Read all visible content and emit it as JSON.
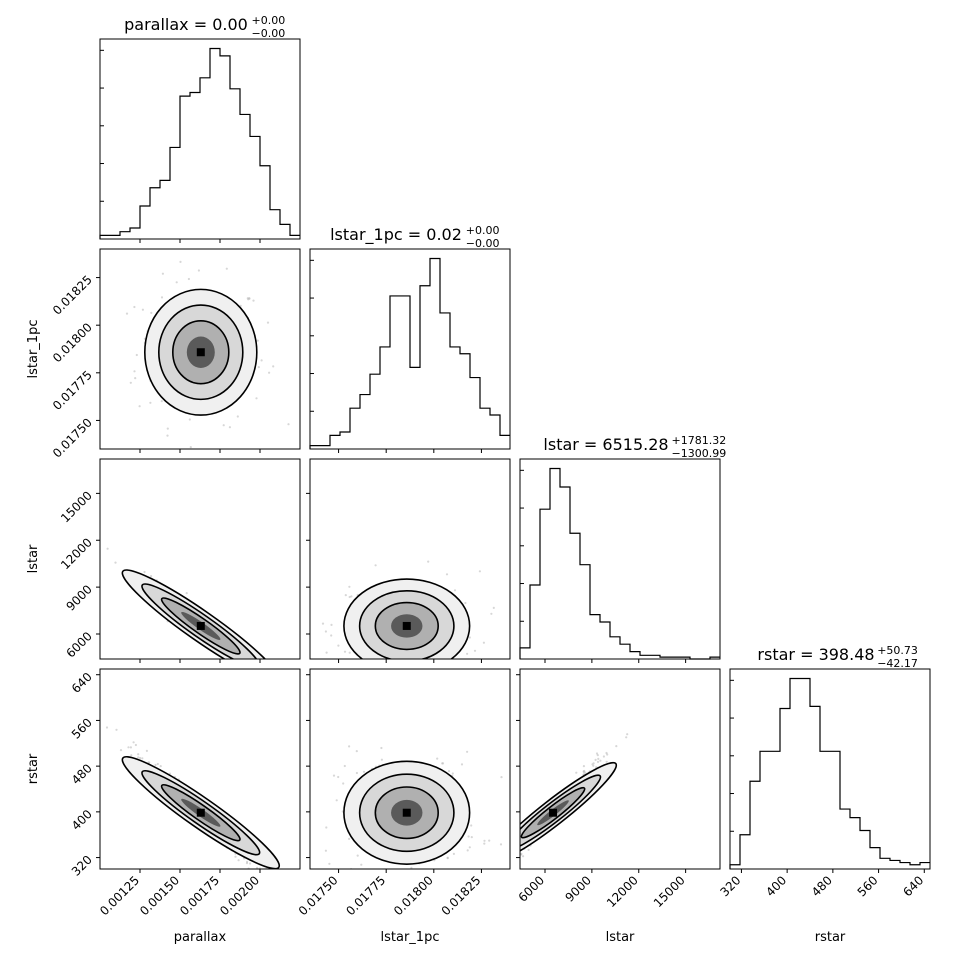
{
  "chart_data": {
    "type": "corner",
    "variables": [
      "parallax",
      "lstar_1pc",
      "lstar",
      "rstar"
    ],
    "panel_titles": [
      {
        "prefix": "parallax = ",
        "value": "0.00",
        "plus": "+0.00",
        "minus": "−0.00"
      },
      {
        "prefix": "lstar_1pc = ",
        "value": "0.02",
        "plus": "+0.00",
        "minus": "−0.00"
      },
      {
        "prefix": "lstar = ",
        "value": "6515.28",
        "plus": "+1781.32",
        "minus": "−1300.99"
      },
      {
        "prefix": "rstar = ",
        "value": "398.48",
        "plus": "+50.73",
        "minus": "−42.17"
      }
    ],
    "ranges": [
      [
        0.001,
        0.00225
      ],
      [
        0.01735,
        0.0184
      ],
      [
        4400,
        17200
      ],
      [
        300,
        650
      ]
    ],
    "ticks": [
      {
        "values": [
          0.00125,
          0.0015,
          0.00175,
          0.002
        ],
        "labels": [
          "0.00125",
          "0.00150",
          "0.00175",
          "0.00200"
        ]
      },
      {
        "values": [
          0.0175,
          0.01775,
          0.018,
          0.01825
        ],
        "labels": [
          "0.01750",
          "0.01775",
          "0.01800",
          "0.01825"
        ]
      },
      {
        "values": [
          6000,
          9000,
          12000,
          15000
        ],
        "labels": [
          "6000",
          "9000",
          "12000",
          "15000"
        ]
      },
      {
        "values": [
          320,
          400,
          480,
          560,
          640
        ],
        "labels": [
          "320",
          "400",
          "480",
          "560",
          "640"
        ]
      }
    ],
    "histograms": [
      {
        "edges_start": 0.001,
        "bin_width": 6.25e-05,
        "counts": [
          1,
          1,
          2,
          3,
          9,
          14,
          16,
          25,
          39,
          40,
          44,
          52,
          50,
          41,
          34,
          28,
          20,
          8,
          4,
          1
        ]
      },
      {
        "edges_start": 0.01735,
        "bin_width": 5.25e-05,
        "counts": [
          1,
          1,
          4,
          5,
          12,
          16,
          22,
          30,
          45,
          45,
          24,
          48,
          56,
          40,
          30,
          28,
          21,
          12,
          10,
          4
        ]
      },
      {
        "edges_start": 4400,
        "bin_width": 640,
        "counts": [
          6,
          40,
          81,
          103,
          93,
          68,
          51,
          24,
          20,
          12,
          8,
          4,
          2,
          2,
          1,
          1,
          1,
          0,
          0,
          1
        ]
      },
      {
        "edges_start": 300,
        "bin_width": 17.5,
        "counts": [
          2,
          16,
          41,
          55,
          55,
          75,
          89,
          89,
          76,
          55,
          55,
          28,
          24,
          18,
          10,
          5,
          4,
          3,
          2,
          3
        ]
      }
    ]
  }
}
